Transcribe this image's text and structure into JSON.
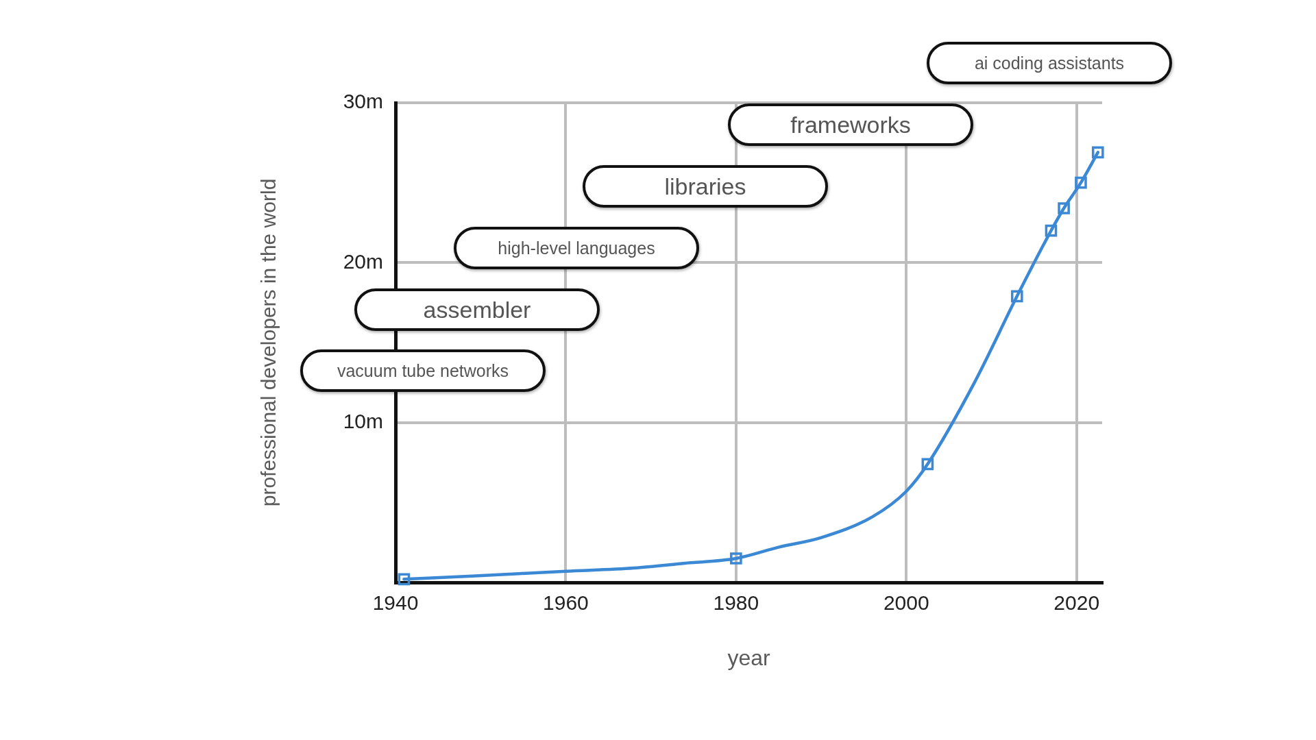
{
  "chart_data": {
    "type": "line",
    "xlabel": "year",
    "ylabel": "professional developers in the world",
    "xlim": [
      1940,
      2023
    ],
    "xticks": [
      1940,
      1960,
      1980,
      2000,
      2020
    ],
    "ylim": [
      0,
      30
    ],
    "yticks": [
      {
        "value": 10,
        "label": "10m"
      },
      {
        "value": 20,
        "label": "20m"
      },
      {
        "value": 30,
        "label": "30m"
      }
    ],
    "grid": true,
    "series": [
      {
        "type": "line",
        "color": "#3b88d4",
        "marker": "none",
        "x": [
          1941,
          1949,
          1960,
          1968,
          1974,
          1980,
          1985,
          1990,
          1996,
          2000,
          2002.5,
          2008,
          2013,
          2017,
          2018.5,
          2020.5,
          2022.5
        ],
        "values": [
          0.2,
          0.4,
          0.7,
          0.9,
          1.2,
          1.5,
          2.2,
          2.8,
          4.1,
          5.7,
          7.4,
          12.5,
          17.9,
          22.0,
          23.4,
          25.0,
          26.9
        ]
      },
      {
        "type": "scatter",
        "color": "#3b88d4",
        "marker": "square",
        "x": [
          1941,
          1980,
          2002.5,
          2013,
          2017,
          2018.5,
          2020.5,
          2022.5
        ],
        "values": [
          0.2,
          1.5,
          7.4,
          17.9,
          22.0,
          23.4,
          25.0,
          26.9
        ]
      }
    ],
    "annotations": [
      "vacuum tube networks",
      "assembler",
      "high-level languages",
      "libraries",
      "frameworks",
      "ai coding assistants"
    ]
  }
}
